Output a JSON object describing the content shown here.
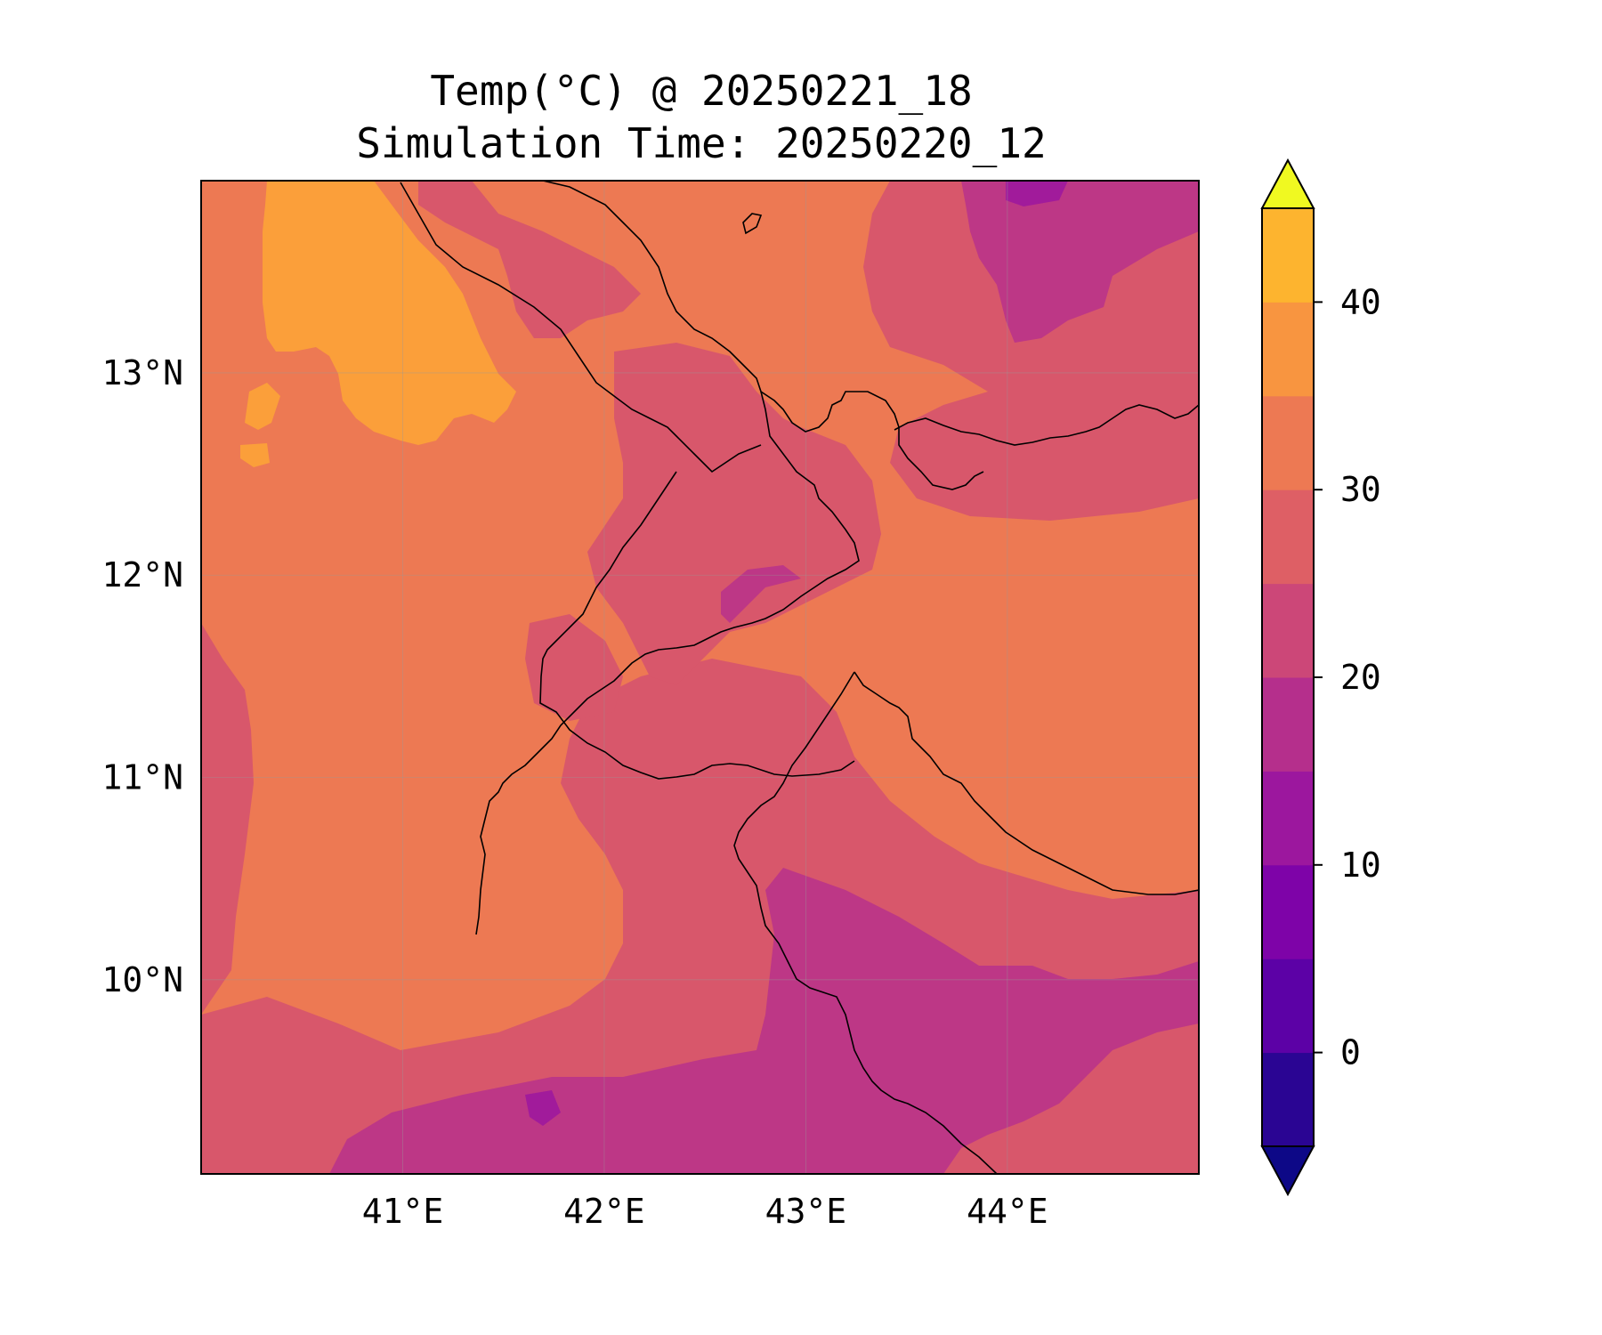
{
  "title": {
    "line1": "Temp(°C) @ 20250221_18",
    "line2": "Simulation Time: 20250220_12"
  },
  "map": {
    "lon_range": [
      40.0,
      44.95
    ],
    "lat_range": [
      9.04,
      13.95
    ],
    "x_ticks": [
      {
        "value": 41,
        "label": "41°E"
      },
      {
        "value": 42,
        "label": "42°E"
      },
      {
        "value": 43,
        "label": "43°E"
      },
      {
        "value": 44,
        "label": "44°E"
      }
    ],
    "y_ticks": [
      {
        "value": 10,
        "label": "10°N"
      },
      {
        "value": 11,
        "label": "11°N"
      },
      {
        "value": 12,
        "label": "12°N"
      },
      {
        "value": 13,
        "label": "13°N"
      }
    ],
    "grid": true,
    "field_colors": {
      "range_10_15": "#a11b9b",
      "range_15_20": "#bd3786",
      "range_20_25": "#d8576b",
      "range_25_30": "#ed7953",
      "range_30_35": "#fb9f3a"
    },
    "coastline_color": "#000000"
  },
  "colorbar": {
    "min": -5,
    "max": 45,
    "extend": "both",
    "levels": [
      -5,
      0,
      5,
      10,
      15,
      20,
      25,
      30,
      35,
      40,
      45
    ],
    "colors": [
      "#2a0593",
      "#5c01a6",
      "#7e03a8",
      "#9c179e",
      "#b52f8c",
      "#cc4778",
      "#de5f65",
      "#ed7953",
      "#f89540",
      "#fdb42f",
      "#f0f921"
    ],
    "under_color": "#0d0887",
    "over_color": "#f0f921",
    "ticks": [
      {
        "value": 0,
        "label": "0"
      },
      {
        "value": 10,
        "label": "10"
      },
      {
        "value": 20,
        "label": "20"
      },
      {
        "value": 30,
        "label": "30"
      },
      {
        "value": 40,
        "label": "40"
      }
    ]
  }
}
